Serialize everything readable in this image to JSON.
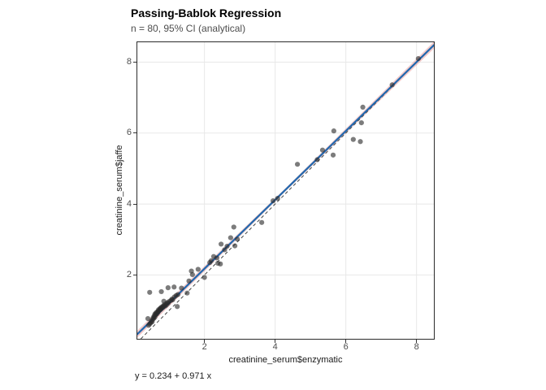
{
  "header": {
    "title": "Passing-Bablok Regression",
    "subtitle": "n = 80, 95% CI (analytical)"
  },
  "caption": "y = 0.234 + 0.971 x",
  "chart_data": {
    "type": "scatter",
    "title": "Passing-Bablok Regression",
    "subtitle": "n = 80, 95% CI (analytical)",
    "xlabel": "creatinine_serum$enzymatic",
    "ylabel": "creatinine_serum$jaffe",
    "xlim": [
      0.1,
      8.49
    ],
    "ylim": [
      0.2,
      8.56
    ],
    "xticks": [
      2,
      4,
      6,
      8
    ],
    "yticks": [
      2,
      4,
      6,
      8
    ],
    "grid": "major-only",
    "legend": "none",
    "n": 80,
    "regression": {
      "intercept": 0.234,
      "slope": 0.971,
      "equation": "y = 0.234 + 0.971 x",
      "ci_label": "95% CI (analytical)"
    },
    "identity_line": true,
    "colors": {
      "regression_line": "#2268ae",
      "ci_band": "#e58c8c",
      "identity_line": "#444444",
      "point": "#2b2b2b",
      "gridline": "#e8e8e8",
      "panel_border": "#2b2b2b",
      "tick_label": "#4d4d4d",
      "subtitle_text": "#4d4d4d"
    },
    "points": [
      [
        8.05,
        8.1
      ],
      [
        7.31,
        7.36
      ],
      [
        6.48,
        6.73
      ],
      [
        6.44,
        6.29
      ],
      [
        5.66,
        6.06
      ],
      [
        6.21,
        5.82
      ],
      [
        6.41,
        5.76
      ],
      [
        5.34,
        5.52
      ],
      [
        5.64,
        5.38
      ],
      [
        5.19,
        5.25
      ],
      [
        4.63,
        5.12
      ],
      [
        4.07,
        4.16
      ],
      [
        3.94,
        4.09
      ],
      [
        3.62,
        3.48
      ],
      [
        2.83,
        3.35
      ],
      [
        2.74,
        3.05
      ],
      [
        2.93,
        3.01
      ],
      [
        2.47,
        2.87
      ],
      [
        2.64,
        2.81
      ],
      [
        2.86,
        2.82
      ],
      [
        2.57,
        2.71
      ],
      [
        2.26,
        2.52
      ],
      [
        2.35,
        2.48
      ],
      [
        2.19,
        2.4
      ],
      [
        2.38,
        2.33
      ],
      [
        2.45,
        2.31
      ],
      [
        2.15,
        2.35
      ],
      [
        1.82,
        2.16
      ],
      [
        1.63,
        2.11
      ],
      [
        1.66,
        2.01
      ],
      [
        2.0,
        1.93
      ],
      [
        0.42,
        0.58
      ],
      [
        0.45,
        0.62
      ],
      [
        0.48,
        0.65
      ],
      [
        0.5,
        0.7
      ],
      [
        0.52,
        0.68
      ],
      [
        0.54,
        0.75
      ],
      [
        0.55,
        0.8
      ],
      [
        0.57,
        0.78
      ],
      [
        0.58,
        0.85
      ],
      [
        0.6,
        0.82
      ],
      [
        0.6,
        0.9
      ],
      [
        0.62,
        0.88
      ],
      [
        0.63,
        0.93
      ],
      [
        0.65,
        0.9
      ],
      [
        0.66,
        0.96
      ],
      [
        0.68,
        0.94
      ],
      [
        0.7,
        0.98
      ],
      [
        0.7,
        1.02
      ],
      [
        0.72,
        1.0
      ],
      [
        0.74,
        1.05
      ],
      [
        0.75,
        1.02
      ],
      [
        0.77,
        1.08
      ],
      [
        0.78,
        1.05
      ],
      [
        0.8,
        1.1
      ],
      [
        0.82,
        1.08
      ],
      [
        0.84,
        1.12
      ],
      [
        0.85,
        1.15
      ],
      [
        0.88,
        1.12
      ],
      [
        0.9,
        1.18
      ],
      [
        0.92,
        1.15
      ],
      [
        0.95,
        1.22
      ],
      [
        0.97,
        1.2
      ],
      [
        1.0,
        1.25
      ],
      [
        1.05,
        1.28
      ],
      [
        1.08,
        1.32
      ],
      [
        1.1,
        1.3
      ],
      [
        1.15,
        1.38
      ],
      [
        1.2,
        1.42
      ],
      [
        1.25,
        1.45
      ],
      [
        1.35,
        1.63
      ],
      [
        1.56,
        1.83
      ],
      [
        0.4,
        0.77
      ],
      [
        0.45,
        1.51
      ],
      [
        0.78,
        1.53
      ],
      [
        0.97,
        1.64
      ],
      [
        1.14,
        1.66
      ],
      [
        0.85,
        1.26
      ],
      [
        1.23,
        1.11
      ],
      [
        1.51,
        1.49
      ]
    ]
  }
}
